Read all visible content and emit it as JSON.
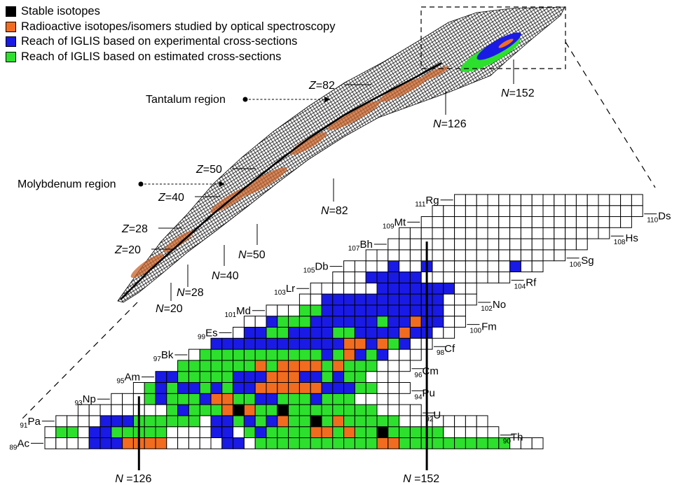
{
  "legend": [
    {
      "label": "Stable isotopes",
      "color": "#000000"
    },
    {
      "label": "Radioactive isotopes/isomers studied by optical spectroscopy",
      "color": "#f26c1f"
    },
    {
      "label": "Reach of IGLIS based on experimental cross-sections",
      "color": "#1a1ae6"
    },
    {
      "label": "Reach of IGLIS based on estimated cross-sections",
      "color": "#2de02d"
    }
  ],
  "colors": {
    "stable": "#000000",
    "studied": "#f26c1f",
    "experimental": "#1a1ae6",
    "estimated": "#2de02d",
    "empty": "#ffffff"
  },
  "overview": {
    "region_labels": [
      {
        "id": "tantalum",
        "text": "Tantalum region"
      },
      {
        "id": "molybdenum",
        "text": "Molybdenum region"
      }
    ],
    "z_labels": [
      {
        "var": "Z",
        "value": "=82"
      },
      {
        "var": "Z",
        "value": "=50"
      },
      {
        "var": "Z",
        "value": "=40"
      },
      {
        "var": "Z",
        "value": "=28"
      },
      {
        "var": "Z",
        "value": "=20"
      }
    ],
    "n_labels": [
      {
        "var": "N",
        "value": "=152"
      },
      {
        "var": "N",
        "value": "=126"
      },
      {
        "var": "N",
        "value": "=82"
      },
      {
        "var": "N",
        "value": "=50"
      },
      {
        "var": "N",
        "value": "=40"
      },
      {
        "var": "N",
        "value": "=28"
      },
      {
        "var": "N",
        "value": "=20"
      }
    ]
  },
  "zoom": {
    "elements": [
      {
        "z": "89",
        "sym": "Ac"
      },
      {
        "z": "90",
        "sym": "Th"
      },
      {
        "z": "91",
        "sym": "Pa"
      },
      {
        "z": "92",
        "sym": "U"
      },
      {
        "z": "93",
        "sym": "Np"
      },
      {
        "z": "94",
        "sym": "Pu"
      },
      {
        "z": "95",
        "sym": "Am"
      },
      {
        "z": "96",
        "sym": "Cm"
      },
      {
        "z": "97",
        "sym": "Bk"
      },
      {
        "z": "98",
        "sym": "Cf"
      },
      {
        "z": "99",
        "sym": "Es"
      },
      {
        "z": "100",
        "sym": "Fm"
      },
      {
        "z": "101",
        "sym": "Md"
      },
      {
        "z": "102",
        "sym": "No"
      },
      {
        "z": "103",
        "sym": "Lr"
      },
      {
        "z": "104",
        "sym": "Rf"
      },
      {
        "z": "105",
        "sym": "Db"
      },
      {
        "z": "106",
        "sym": "Sg"
      },
      {
        "z": "107",
        "sym": "Bh"
      },
      {
        "z": "108",
        "sym": "Hs"
      },
      {
        "z": "109",
        "sym": "Mt"
      },
      {
        "z": "110",
        "sym": "Ds"
      },
      {
        "z": "111",
        "sym": "Rg"
      }
    ],
    "n_lines": [
      {
        "var": "N",
        "value": " =126",
        "n": 126
      },
      {
        "var": "N",
        "value": " =152",
        "n": 152
      }
    ],
    "rows": [
      {
        "z": 89,
        "n0": 118,
        "cells": "....BBBOOOO.....BB.GGGGGGGGGGGOOGGGGGGGGGG..."
      },
      {
        "z": 90,
        "n0": 118,
        "cells": ".GG.BBGGGGG....BB.GBGGGGOOGOGGSGGGGG....."
      },
      {
        "z": 91,
        "n0": 119,
        "cells": "....BBBGGGGGG.BBGBGBOGGSGOGGGGG........"
      },
      {
        "z": 92,
        "n0": 121,
        "cells": "........GBGGGOSOGGSGGGGGGGG...."
      },
      {
        "z": 93,
        "n0": 124,
        "cells": "...GBGGGBOOGGBBGGGBGGG...."
      },
      {
        "z": 94,
        "n0": 126,
        "cells": ".GBGBBGBGBBOOOOOOBBBGG..."
      },
      {
        "z": 95,
        "n0": 128,
        "cells": "BBGGGGGBBBOOOBBGBGG..."
      },
      {
        "z": 96,
        "n0": 130,
        "cells": "GGGGGGGOGOOOOGOGGG..."
      },
      {
        "z": 97,
        "n0": 131,
        "cells": ".GGGGGGGGGGGBGOBGB..."
      },
      {
        "z": 98,
        "n0": 133,
        "cells": "BBBBBBBBBBBBOOBOGB.."
      },
      {
        "z": 99,
        "n0": 135,
        "cells": ".BBGGBBBBGGBBBBOBB.."
      },
      {
        "z": 100,
        "n0": 136,
        "cells": "..BGGGBBBBBBGBBOBB.."
      },
      {
        "z": 101,
        "n0": 138,
        "cells": "...GGBBBBBBBBBBB.."
      },
      {
        "z": 102,
        "n0": 141,
        "cells": "..BBBBBBBBBBB..."
      },
      {
        "z": 103,
        "n0": 142,
        "cells": "......BBBBBBB.."
      },
      {
        "z": 104,
        "n0": 144,
        "cells": "...BBBBB........"
      },
      {
        "z": 105,
        "n0": 145,
        "cells": "....B..B.......B.."
      },
      {
        "z": 106,
        "n0": 147,
        "cells": ".................."
      },
      {
        "z": 107,
        "n0": 149,
        "cells": ".................."
      },
      {
        "z": 108,
        "n0": 150,
        "cells": "..................."
      },
      {
        "z": 109,
        "n0": 152,
        "cells": "..................."
      },
      {
        "z": 110,
        "n0": 153,
        "cells": "..................."
      },
      {
        "z": 111,
        "n0": 155,
        "cells": "................."
      }
    ]
  }
}
